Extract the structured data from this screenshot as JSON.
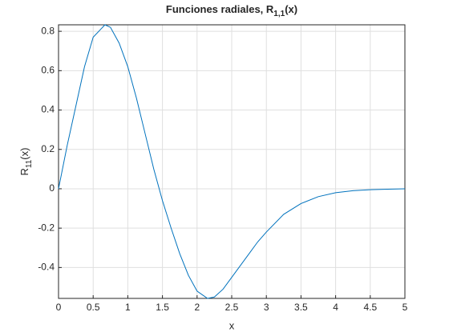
{
  "chart_data": {
    "type": "line",
    "title": [
      "Funciones radiales, R",
      "1,1",
      "(x)"
    ],
    "xlabel": "x",
    "ylabel": [
      "R",
      "11",
      "(x)"
    ],
    "x": [
      0,
      0.125,
      0.25,
      0.375,
      0.5,
      0.67,
      0.75,
      0.875,
      1.0,
      1.125,
      1.25,
      1.375,
      1.5,
      1.625,
      1.75,
      1.875,
      2.0,
      2.15,
      2.25,
      2.375,
      2.5,
      2.625,
      2.75,
      2.875,
      3.0,
      3.25,
      3.5,
      3.75,
      4.0,
      4.25,
      4.5,
      4.75,
      5.0
    ],
    "series": [
      {
        "name": "R11",
        "color": "#0072bd",
        "values": [
          0,
          0.22,
          0.42,
          0.62,
          0.77,
          0.833,
          0.82,
          0.74,
          0.62,
          0.46,
          0.28,
          0.1,
          -0.06,
          -0.2,
          -0.33,
          -0.44,
          -0.52,
          -0.557,
          -0.55,
          -0.51,
          -0.45,
          -0.39,
          -0.33,
          -0.27,
          -0.22,
          -0.13,
          -0.075,
          -0.04,
          -0.02,
          -0.01,
          -0.005,
          -0.002,
          0
        ]
      }
    ],
    "xlim": [
      0,
      5
    ],
    "ylim": [
      -0.557,
      0.833
    ],
    "xticks": [
      0,
      0.5,
      1,
      1.5,
      2,
      2.5,
      3,
      3.5,
      4,
      4.5,
      5
    ],
    "yticks": [
      -0.4,
      -0.2,
      0,
      0.2,
      0.4,
      0.6,
      0.8
    ],
    "grid": true
  }
}
